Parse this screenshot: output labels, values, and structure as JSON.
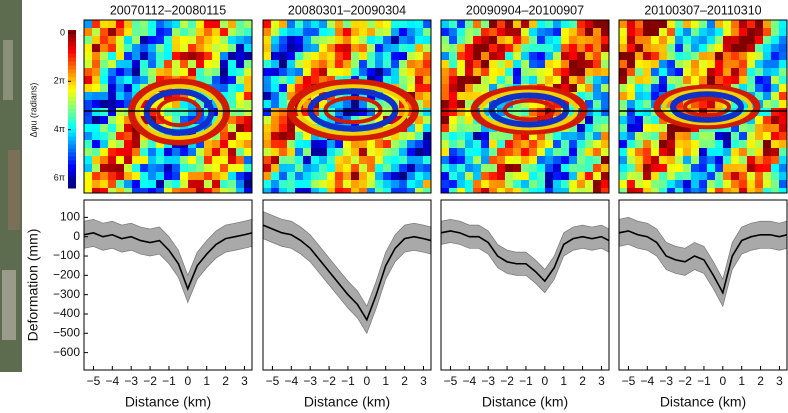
{
  "chart_data": [
    {
      "type": "line",
      "title": "20070112–20080115",
      "xlabel": "Distance (km)",
      "ylabel": "Deformation (mm)",
      "x": [
        -5.5,
        -5,
        -4.5,
        -4,
        -3.5,
        -3,
        -2.5,
        -2,
        -1.5,
        -1,
        -0.5,
        0,
        0.5,
        1,
        1.5,
        2,
        2.5,
        3,
        3.4
      ],
      "series": [
        {
          "color": "#000000",
          "band_color": "#a9a9a9",
          "values": [
            10,
            20,
            0,
            10,
            -10,
            0,
            -20,
            -30,
            -20,
            -70,
            -140,
            -270,
            -150,
            -90,
            -40,
            -10,
            0,
            10,
            20
          ],
          "error": [
            70,
            70,
            70,
            70,
            70,
            70,
            70,
            70,
            70,
            70,
            70,
            70,
            70,
            70,
            70,
            70,
            70,
            70,
            70
          ]
        }
      ],
      "xlim": [
        -5.5,
        3.4
      ],
      "ylim": [
        -690,
        190
      ],
      "xticks": [
        {
          "value": -5,
          "label": "−5"
        },
        {
          "value": -4,
          "label": "−4"
        },
        {
          "value": -3,
          "label": "−3"
        },
        {
          "value": -2,
          "label": "−2"
        },
        {
          "value": -1,
          "label": "−1"
        },
        0,
        1,
        2,
        3
      ],
      "yticks": [
        100,
        0,
        {
          "value": -100,
          "label": "−100"
        },
        {
          "value": -200,
          "label": "−200"
        },
        {
          "value": -300,
          "label": "−300"
        },
        {
          "value": -400,
          "label": "−400"
        },
        {
          "value": -500,
          "label": "−500"
        },
        {
          "value": -600,
          "label": "−600"
        }
      ]
    },
    {
      "type": "line",
      "title": "20080301–20090304",
      "xlabel": "Distance (km)",
      "x": [
        -5.5,
        -5,
        -4.5,
        -4,
        -3.5,
        -3,
        -2.5,
        -2,
        -1.5,
        -1,
        -0.5,
        0,
        0.5,
        1,
        1.5,
        2,
        2.5,
        3,
        3.4
      ],
      "series": [
        {
          "color": "#000000",
          "band_color": "#a9a9a9",
          "values": [
            60,
            40,
            20,
            10,
            -20,
            -60,
            -120,
            -180,
            -240,
            -300,
            -350,
            -430,
            -300,
            -150,
            -60,
            -10,
            0,
            -10,
            -20
          ],
          "error": [
            70,
            70,
            70,
            70,
            70,
            70,
            70,
            70,
            70,
            70,
            70,
            70,
            70,
            70,
            70,
            70,
            70,
            70,
            70
          ]
        }
      ],
      "xlim": [
        -5.5,
        3.4
      ],
      "ylim": [
        -690,
        190
      ],
      "xticks": [
        {
          "value": -5,
          "label": "−5"
        },
        {
          "value": -4,
          "label": "−4"
        },
        {
          "value": -3,
          "label": "−3"
        },
        {
          "value": -2,
          "label": "−2"
        },
        {
          "value": -1,
          "label": "−1"
        },
        0,
        1,
        2,
        3
      ]
    },
    {
      "type": "line",
      "title": "20090904–20100907",
      "xlabel": "Distance (km)",
      "x": [
        -5.5,
        -5,
        -4.5,
        -4,
        -3.5,
        -3,
        -2.5,
        -2,
        -1.5,
        -1,
        -0.5,
        0,
        0.5,
        1,
        1.5,
        2,
        2.5,
        3,
        3.4
      ],
      "series": [
        {
          "color": "#000000",
          "band_color": "#a9a9a9",
          "values": [
            20,
            30,
            20,
            0,
            0,
            -30,
            -100,
            -130,
            -140,
            -140,
            -180,
            -230,
            -160,
            -40,
            -10,
            0,
            -10,
            0,
            -20
          ],
          "error": [
            60,
            60,
            60,
            60,
            60,
            60,
            60,
            60,
            60,
            60,
            60,
            60,
            60,
            60,
            60,
            60,
            60,
            60,
            60
          ]
        }
      ],
      "xlim": [
        -5.5,
        3.4
      ],
      "ylim": [
        -690,
        190
      ],
      "xticks": [
        {
          "value": -5,
          "label": "−5"
        },
        {
          "value": -4,
          "label": "−4"
        },
        {
          "value": -3,
          "label": "−3"
        },
        {
          "value": -2,
          "label": "−2"
        },
        {
          "value": -1,
          "label": "−1"
        },
        0,
        1,
        2,
        3
      ]
    },
    {
      "type": "line",
      "title": "20100307–20110310",
      "xlabel": "Distance (km)",
      "x": [
        -5.5,
        -5,
        -4.5,
        -4,
        -3.5,
        -3,
        -2.5,
        -2,
        -1.5,
        -1,
        -0.5,
        0,
        0.5,
        1,
        1.5,
        2,
        2.5,
        3,
        3.4
      ],
      "series": [
        {
          "color": "#000000",
          "band_color": "#a9a9a9",
          "values": [
            20,
            30,
            10,
            0,
            -30,
            -100,
            -120,
            -130,
            -100,
            -120,
            -200,
            -290,
            -100,
            -20,
            0,
            10,
            10,
            0,
            10
          ],
          "error": [
            70,
            70,
            70,
            70,
            70,
            70,
            70,
            70,
            70,
            70,
            70,
            70,
            70,
            70,
            70,
            70,
            70,
            70,
            70
          ]
        }
      ],
      "xlim": [
        -5.5,
        3.4
      ],
      "ylim": [
        -690,
        190
      ],
      "xticks": [
        {
          "value": -5,
          "label": "−5"
        },
        {
          "value": -4,
          "label": "−4"
        },
        {
          "value": -3,
          "label": "−3"
        },
        {
          "value": -2,
          "label": "−2"
        },
        {
          "value": -1,
          "label": "−1"
        },
        0,
        1,
        2,
        3
      ]
    }
  ],
  "colorbar": {
    "label": "Δφu (radians)",
    "lim": [
      0,
      18.8496
    ],
    "ticks": [
      0,
      {
        "value": 6.2832,
        "label": "2π"
      },
      {
        "value": 12.5664,
        "label": "4π"
      },
      {
        "value": 18.8496,
        "label": "6π"
      }
    ]
  }
}
